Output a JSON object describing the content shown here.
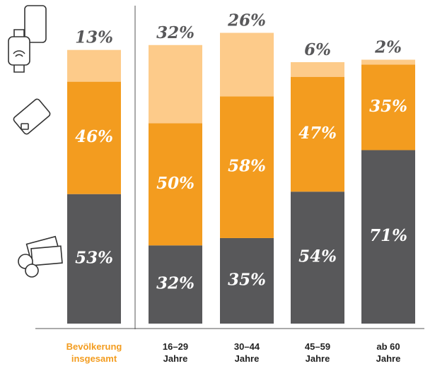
{
  "chart_data": {
    "type": "stacked_bar",
    "categories": [
      "Bevölkerung\ninsgesamt",
      "16–29\nJahre",
      "30–44\nJahre",
      "45–59\nJahre",
      "ab 60\nJahre"
    ],
    "series": [
      {
        "color": "#58585a",
        "values": [
          53,
          32,
          35,
          54,
          71
        ],
        "value_labels": [
          "53%",
          "32%",
          "35%",
          "54%",
          "71%"
        ]
      },
      {
        "color": "#f39c1f",
        "values": [
          46,
          50,
          58,
          47,
          35
        ],
        "value_labels": [
          "46%",
          "50%",
          "58%",
          "47%",
          "35%"
        ]
      },
      {
        "color": "#fdcb8a",
        "values": [
          13,
          32,
          26,
          6,
          2
        ],
        "value_labels": [
          "13%",
          "32%",
          "26%",
          "6%",
          "2%"
        ]
      }
    ],
    "ylim": [
      0,
      120
    ]
  }
}
